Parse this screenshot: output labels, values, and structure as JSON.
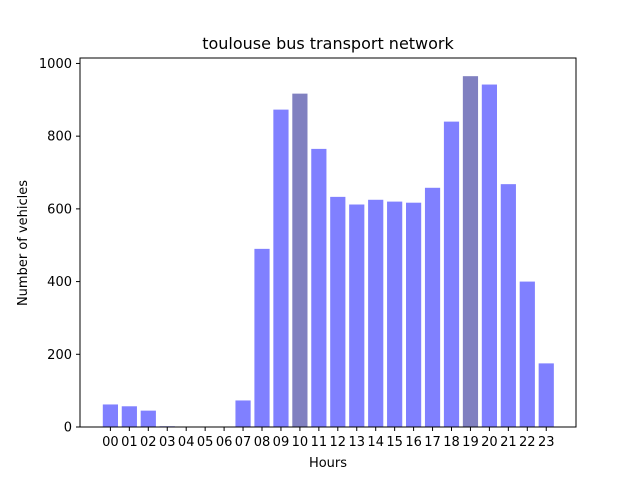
{
  "chart_data": {
    "type": "bar",
    "title": "toulouse bus transport network",
    "xlabel": "Hours",
    "ylabel": "Number of vehicles",
    "categories": [
      "00",
      "01",
      "02",
      "03",
      "04",
      "05",
      "06",
      "07",
      "08",
      "09",
      "10",
      "11",
      "12",
      "13",
      "14",
      "15",
      "16",
      "17",
      "18",
      "19",
      "20",
      "21",
      "22",
      "23"
    ],
    "values": [
      62,
      57,
      45,
      2,
      0,
      0,
      0,
      73,
      490,
      873,
      917,
      765,
      633,
      612,
      625,
      620,
      617,
      658,
      840,
      965,
      942,
      668,
      400,
      175
    ],
    "ylim": [
      0,
      1015
    ],
    "yticks": [
      0,
      200,
      400,
      600,
      800,
      1000
    ],
    "grid": false,
    "colors": {
      "bar": "#8080ff",
      "highlight": "#8080c0"
    },
    "highlighted_categories": [
      "10",
      "19"
    ]
  }
}
